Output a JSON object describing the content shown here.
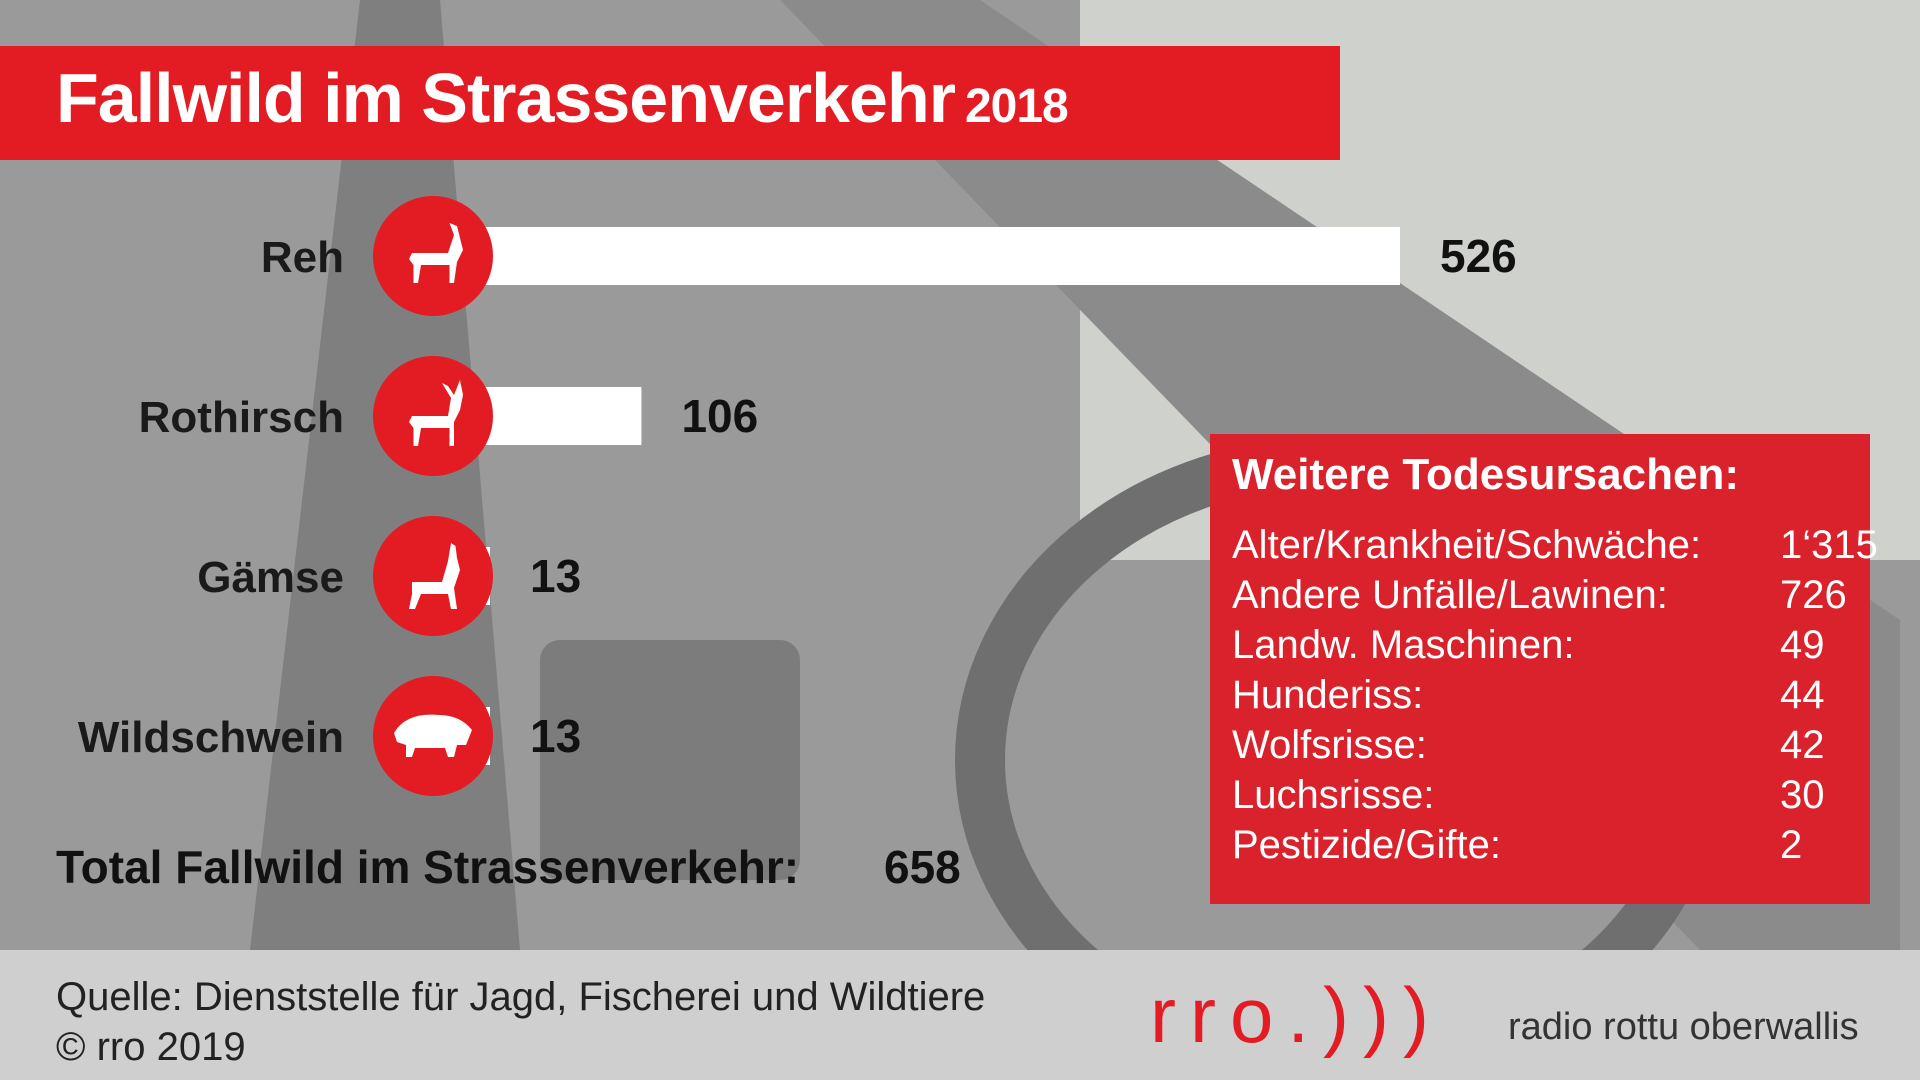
{
  "header": {
    "title": "Fallwild im Strassenverkehr",
    "year": "2018"
  },
  "chart_data": {
    "type": "bar",
    "orientation": "horizontal",
    "categories": [
      "Reh",
      "Rothirsch",
      "Gämse",
      "Wildschwein"
    ],
    "values": [
      526,
      106,
      13,
      13
    ],
    "icons": [
      "roe-deer-icon",
      "red-deer-icon",
      "chamois-icon",
      "wild-boar-icon"
    ],
    "title": "Fallwild im Strassenverkehr 2018",
    "xlim": [
      0,
      526
    ],
    "grid": false,
    "bar_color": "#ffffff",
    "icon_color": "#e31b23"
  },
  "total": {
    "label": "Total Fallwild im Strassenverkehr:",
    "value": "658"
  },
  "causes": {
    "title": "Weitere Todesursachen:",
    "items": [
      {
        "label": "Alter/Krankheit/Schwäche:",
        "value": "1‘315"
      },
      {
        "label": "Andere Unfälle/Lawinen:",
        "value": "726"
      },
      {
        "label": "Landw. Maschinen:",
        "value": "49"
      },
      {
        "label": "Hunderiss:",
        "value": "44"
      },
      {
        "label": "Wolfsrisse:",
        "value": "42"
      },
      {
        "label": "Luchsrisse:",
        "value": "30"
      },
      {
        "label": "Pestizide/Gifte:",
        "value": "2"
      }
    ]
  },
  "footer": {
    "source": "Quelle: Dienststelle für Jagd, Fischerei und Wildtiere",
    "copyright": "© rro 2019",
    "logo": "rro.)))",
    "tagline": "radio rottu oberwallis"
  },
  "colors": {
    "brand_red": "#e31b23",
    "panel_red": "#d9222b",
    "footer_grey": "#cfcfcf"
  }
}
